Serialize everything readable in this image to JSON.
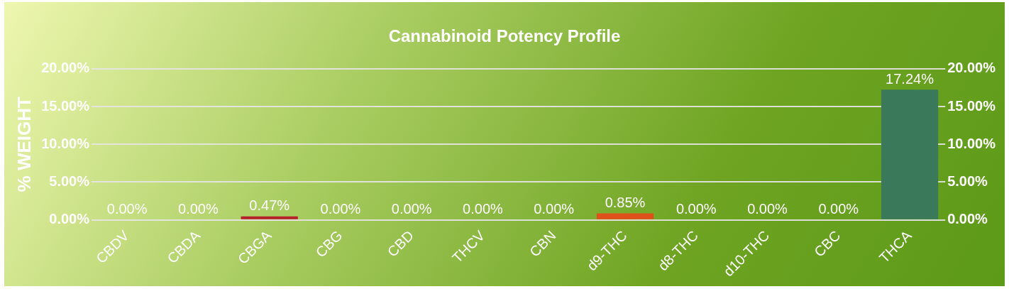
{
  "chart_data": {
    "type": "bar",
    "title": "Cannabinoid Potency Profile",
    "ylabel": "% WEIGHT",
    "categories": [
      "CBDV",
      "CBDA",
      "CBGA",
      "CBG",
      "CBD",
      "THCV",
      "CBN",
      "d9-THC",
      "d8-THC",
      "d10-THC",
      "CBC",
      "THCA"
    ],
    "values": [
      0,
      0,
      0.47,
      0,
      0,
      0,
      0,
      0.85,
      0,
      0,
      0,
      17.24
    ],
    "value_labels": [
      "0.00%",
      "0.00%",
      "0.47%",
      "0.00%",
      "0.00%",
      "0.00%",
      "0.00%",
      "0.85%",
      "0.00%",
      "0.00%",
      "0.00%",
      "17.24%"
    ],
    "colors": [
      "#1f3a8a",
      "#0b6b3a",
      "#b5202a",
      "#5a2d82",
      "#2596c8",
      "#5e9e2c",
      "#7a3f1a",
      "#e0501a",
      "#c44a78",
      "#d8962a",
      "#3d4f8a",
      "#3a7a5a"
    ],
    "ylim": [
      0,
      20
    ],
    "yticks": [
      {
        "value": 0,
        "label": "0.00%"
      },
      {
        "value": 5,
        "label": "5.00%"
      },
      {
        "value": 10,
        "label": "10.00%"
      },
      {
        "value": 15,
        "label": "15.00%"
      },
      {
        "value": 20,
        "label": "20.00%"
      }
    ],
    "y2lim": [
      0,
      20
    ],
    "y2ticks": [
      {
        "value": 0,
        "label": "0.00%"
      },
      {
        "value": 5,
        "label": "5.00%"
      },
      {
        "value": 10,
        "label": "10.00%"
      },
      {
        "value": 15,
        "label": "15.00%"
      },
      {
        "value": 20,
        "label": "20.00%"
      }
    ],
    "grid": "y",
    "legend": false
  }
}
